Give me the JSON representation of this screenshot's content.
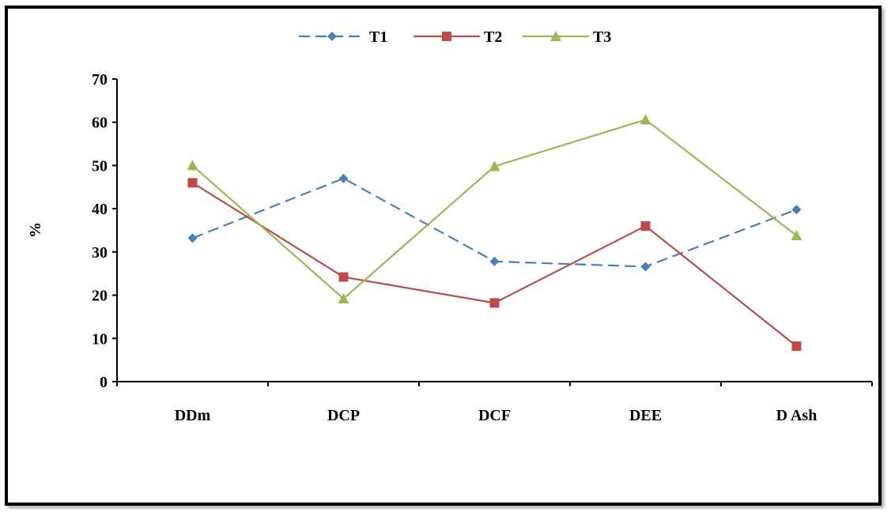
{
  "chart_data": {
    "type": "line",
    "title": "",
    "xlabel": "",
    "ylabel": "%",
    "ylim": [
      0,
      70
    ],
    "yticks": [
      0,
      10,
      20,
      30,
      40,
      50,
      60,
      70
    ],
    "categories": [
      "DDm",
      "DCP",
      "DCF",
      "DEE",
      "D Ash"
    ],
    "legend_position": "top-center",
    "grid": false,
    "series": [
      {
        "name": "T1",
        "color": "#4a7ebb",
        "marker": "diamond",
        "dash": true,
        "values": [
          33.2,
          47.0,
          27.8,
          26.6,
          39.8
        ]
      },
      {
        "name": "T2",
        "color": "#be4b48",
        "marker": "square",
        "dash": false,
        "values": [
          46.0,
          24.2,
          18.2,
          36.0,
          8.2
        ]
      },
      {
        "name": "T3",
        "color": "#98b954",
        "marker": "triangle",
        "dash": false,
        "values": [
          50.0,
          19.2,
          49.8,
          60.6,
          33.8
        ]
      }
    ]
  }
}
